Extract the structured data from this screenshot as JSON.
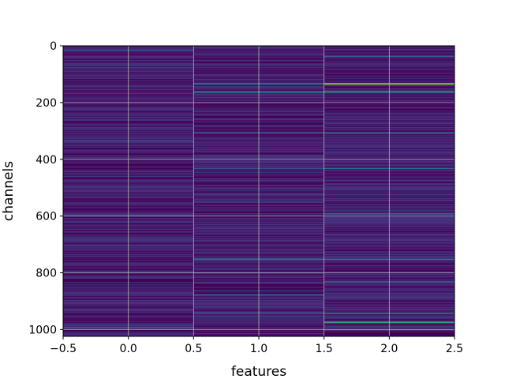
{
  "chart_data": {
    "type": "heatmap",
    "title": "",
    "xlabel": "features",
    "ylabel": "channels",
    "xlim": [
      -0.5,
      2.5
    ],
    "ylim": [
      1024,
      0
    ],
    "x_ticks": [
      "−0.5",
      "0.0",
      "0.5",
      "1.0",
      "1.5",
      "2.0",
      "2.5"
    ],
    "y_ticks": [
      "0",
      "200",
      "400",
      "600",
      "800",
      "1000"
    ],
    "grid": true,
    "colormap": "viridis",
    "n_columns": 3,
    "n_rows": 1024,
    "background_colors": [
      "#440154",
      "#471365",
      "#46327e"
    ],
    "highlight_rows": [
      {
        "col": 0,
        "channel": 14,
        "value": 0.22
      },
      {
        "col": 0,
        "channel": 75,
        "value": 0.18
      },
      {
        "col": 0,
        "channel": 332,
        "value": 0.2
      },
      {
        "col": 0,
        "channel": 990,
        "value": 0.28
      },
      {
        "col": 1,
        "channel": 132,
        "value": 0.45
      },
      {
        "col": 1,
        "channel": 160,
        "value": 0.5
      },
      {
        "col": 1,
        "channel": 305,
        "value": 0.3
      },
      {
        "col": 1,
        "channel": 430,
        "value": 0.25
      },
      {
        "col": 1,
        "channel": 750,
        "value": 0.35
      },
      {
        "col": 1,
        "channel": 875,
        "value": 0.28
      },
      {
        "col": 1,
        "channel": 940,
        "value": 0.3
      },
      {
        "col": 2,
        "channel": 35,
        "value": 0.3
      },
      {
        "col": 2,
        "channel": 132,
        "value": 0.85
      },
      {
        "col": 2,
        "channel": 160,
        "value": 0.55
      },
      {
        "col": 2,
        "channel": 305,
        "value": 0.4
      },
      {
        "col": 2,
        "channel": 430,
        "value": 0.35
      },
      {
        "col": 2,
        "channel": 590,
        "value": 0.3
      },
      {
        "col": 2,
        "channel": 750,
        "value": 0.4
      },
      {
        "col": 2,
        "channel": 830,
        "value": 0.3
      },
      {
        "col": 2,
        "channel": 940,
        "value": 0.45
      },
      {
        "col": 2,
        "channel": 972,
        "value": 0.6
      }
    ]
  }
}
